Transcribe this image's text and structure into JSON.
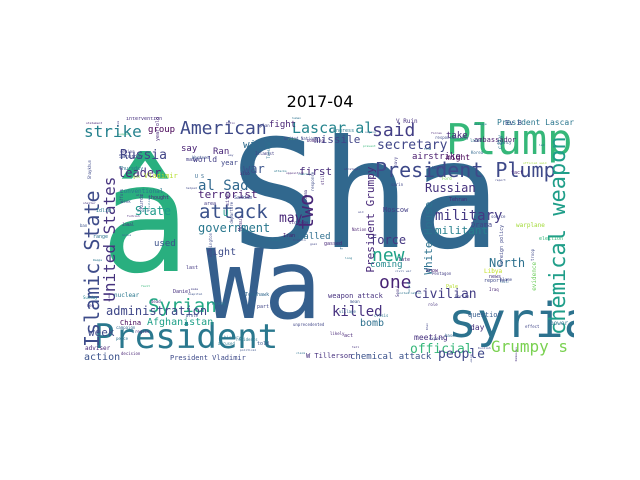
{
  "figure": {
    "title": "2017-04"
  },
  "word_cloud": {
    "words": [
      {
        "text": "Sha",
        "color": "#31688e"
      },
      {
        "text": "Wa",
        "color": "#355f8d"
      },
      {
        "text": "â",
        "color": "#29af7f"
      },
      {
        "text": "Plump",
        "color": "#35b779"
      },
      {
        "text": "syria",
        "color": "#2c728e"
      },
      {
        "text": "President",
        "color": "#2a788e"
      },
      {
        "text": "President Plump",
        "color": "#3e4989"
      },
      {
        "text": "attack",
        "color": "#3b528b"
      },
      {
        "text": "American",
        "color": "#3e4a89"
      },
      {
        "text": "Syrian",
        "color": "#22a884"
      },
      {
        "text": "chemical weapon",
        "color": "#1f9e89"
      },
      {
        "text": "Islamic State",
        "color": "#3e4c8a"
      },
      {
        "text": "United States",
        "color": "#46337e"
      },
      {
        "text": "strike",
        "color": "#26828e"
      },
      {
        "text": "said",
        "color": "#433e85"
      },
      {
        "text": "two",
        "color": "#482878"
      },
      {
        "text": "one",
        "color": "#482475"
      },
      {
        "text": "new",
        "color": "#1fa187"
      },
      {
        "text": "Grumpy s",
        "color": "#7ad151"
      },
      {
        "text": "Lascar al",
        "color": "#25858e"
      },
      {
        "text": "Russia",
        "color": "#414487"
      },
      {
        "text": "leader",
        "color": "#472d7b"
      },
      {
        "text": "killed",
        "color": "#46307e"
      },
      {
        "text": "al Sad",
        "color": "#31688e"
      },
      {
        "text": "military",
        "color": "#443983"
      },
      {
        "text": "Russian",
        "color": "#46327e"
      },
      {
        "text": "secretary",
        "color": "#404688"
      },
      {
        "text": "civilian",
        "color": "#433d84"
      },
      {
        "text": "administration",
        "color": "#3f4788"
      },
      {
        "text": "State",
        "color": "#1f9a8a"
      },
      {
        "text": "may",
        "color": "#482677"
      },
      {
        "text": "government",
        "color": "#2a788e"
      },
      {
        "text": "terrorist",
        "color": "#481f70"
      },
      {
        "text": "White House",
        "color": "#2c728e"
      },
      {
        "text": "President Grumpy",
        "color": "#482979"
      },
      {
        "text": "official",
        "color": "#35b779"
      },
      {
        "text": "people",
        "color": "#3f4889"
      },
      {
        "text": "force",
        "color": "#453781"
      },
      {
        "text": "North",
        "color": "#2d718e"
      },
      {
        "text": "militant",
        "color": "#27808e"
      },
      {
        "text": "week",
        "color": "#3e4a89"
      },
      {
        "text": "war",
        "color": "#3a548c"
      },
      {
        "text": "will",
        "color": "#2f6c8e"
      },
      {
        "text": "first",
        "color": "#472c7a"
      },
      {
        "text": "missile",
        "color": "#414487"
      },
      {
        "text": "group",
        "color": "#440154"
      },
      {
        "text": "say",
        "color": "#482173"
      },
      {
        "text": "used",
        "color": "#3b518b"
      },
      {
        "text": "right",
        "color": "#3e4c8a"
      },
      {
        "text": "Afghanistan",
        "color": "#1fa088"
      },
      {
        "text": "bomb",
        "color": "#2d708e"
      },
      {
        "text": "action",
        "color": "#3b528b"
      },
      {
        "text": "weapon attack",
        "color": "#46317e"
      },
      {
        "text": "chemical attack",
        "color": "#3b528b"
      },
      {
        "text": "coming",
        "color": "#23898e"
      },
      {
        "text": "called",
        "color": "#2e6e8e"
      },
      {
        "text": "Moscow",
        "color": "#433e85"
      },
      {
        "text": "airstrike",
        "color": "#481a6c"
      },
      {
        "text": "fight",
        "color": "#482374"
      },
      {
        "text": "take",
        "color": "#482878"
      },
      {
        "text": "might",
        "color": "#440154"
      },
      {
        "text": "day",
        "color": "#46337e"
      },
      {
        "text": "meeting",
        "color": "#46307e"
      },
      {
        "text": "Drama",
        "color": "#414487"
      },
      {
        "text": "question",
        "color": "#365c8d"
      },
      {
        "text": "President Lascar",
        "color": "#2a768e"
      },
      {
        "text": "President Vladimir",
        "color": "#3e4a89"
      },
      {
        "text": "W Tillerson",
        "color": "#46307e"
      },
      {
        "text": "ambassador",
        "color": "#481b6d"
      },
      {
        "text": "Ran",
        "color": "#482677"
      },
      {
        "text": "world",
        "color": "#433e85"
      },
      {
        "text": "China",
        "color": "#440154"
      },
      {
        "text": "year",
        "color": "#3f4788"
      },
      {
        "text": "power",
        "color": "#2c728e"
      },
      {
        "text": "U",
        "color": "#1f9e89"
      },
      {
        "text": "Ev B",
        "color": "#3b528b"
      },
      {
        "text": "V Ruin",
        "color": "#46307e"
      },
      {
        "text": "conventional",
        "color": "#2a788e"
      },
      {
        "text": "Vladimir",
        "color": "#b5de2b"
      },
      {
        "text": "evidence",
        "color": "#6ccd5a"
      },
      {
        "text": "nuclear",
        "color": "#2a788e"
      },
      {
        "text": "intervention",
        "color": "#46307e"
      },
      {
        "text": "warplane",
        "color": "#a2da37"
      },
      {
        "text": "reporter",
        "color": "#3e4989"
      },
      {
        "text": "Libya",
        "color": "#c2df23"
      },
      {
        "text": "foreign policy",
        "color": "#3f4788"
      },
      {
        "text": "election",
        "color": "#35b779"
      },
      {
        "text": "adviser",
        "color": "#482677"
      },
      {
        "text": "city",
        "color": "#2c728e"
      },
      {
        "text": "thought",
        "color": "#482878"
      },
      {
        "text": "gas",
        "color": "#8fd744"
      },
      {
        "text": "campaign",
        "color": "#31688e"
      },
      {
        "text": "Turkey",
        "color": "#2a788e"
      },
      {
        "text": "response",
        "color": "#3e4c8a"
      },
      {
        "text": "region",
        "color": "#31688e"
      },
      {
        "text": "Damascus",
        "color": "#46307e"
      },
      {
        "text": "official said",
        "color": "#a0da39"
      },
      {
        "text": "sarin",
        "color": "#404688"
      },
      {
        "text": "opposition",
        "color": "#482475"
      },
      {
        "text": "dead",
        "color": "#46327e"
      },
      {
        "text": "peace",
        "color": "#2c728e"
      },
      {
        "text": "country",
        "color": "#26828e"
      },
      {
        "text": "Pentagon",
        "color": "#433e85"
      },
      {
        "text": "rebel",
        "color": "#5ec962"
      },
      {
        "text": "civil war",
        "color": "#3b528b"
      },
      {
        "text": "Iran",
        "color": "#481a6c"
      },
      {
        "text": "strategy",
        "color": "#482979"
      },
      {
        "text": "time",
        "color": "#2a788e"
      },
      {
        "text": "Kurdish",
        "color": "#404688"
      },
      {
        "text": "know",
        "color": "#482173"
      },
      {
        "text": "departure",
        "color": "#3e4989"
      },
      {
        "text": "united nation",
        "color": "#2c728e"
      },
      {
        "text": "shelter",
        "color": "#46337e"
      },
      {
        "text": "decision",
        "color": "#482374"
      },
      {
        "text": "Nation",
        "color": "#481f70"
      },
      {
        "text": "report",
        "color": "#404688"
      },
      {
        "text": "target",
        "color": "#2c728e"
      },
      {
        "text": "wrote",
        "color": "#3b528b"
      },
      {
        "text": "Kim",
        "color": "#433e85"
      },
      {
        "text": "Korea",
        "color": "#31688e"
      },
      {
        "text": "Washington",
        "color": "#3e4c8a"
      },
      {
        "text": "helped",
        "color": "#3f4788"
      },
      {
        "text": "year old",
        "color": "#482878"
      },
      {
        "text": "Tuesday",
        "color": "#2c728e"
      },
      {
        "text": "Sunday",
        "color": "#26828e"
      },
      {
        "text": "residents",
        "color": "#2a788e"
      },
      {
        "text": "area",
        "color": "#443983"
      },
      {
        "text": "support",
        "color": "#35b779"
      },
      {
        "text": "Raqqa",
        "color": "#2a788e"
      },
      {
        "text": "likely",
        "color": "#482677"
      },
      {
        "text": "regime",
        "color": "#46307e"
      },
      {
        "text": "blame",
        "color": "#3e4a89"
      },
      {
        "text": "source",
        "color": "#404688"
      },
      {
        "text": "base",
        "color": "#31688e"
      },
      {
        "text": "crisis",
        "color": "#2a788e"
      },
      {
        "text": "troop",
        "color": "#3e4989"
      },
      {
        "text": "role",
        "color": "#46337e"
      },
      {
        "text": "Iraq",
        "color": "#482475"
      },
      {
        "text": "claim",
        "color": "#2c728e"
      },
      {
        "text": "navy",
        "color": "#433e85"
      },
      {
        "text": "Putin",
        "color": "#46307e"
      },
      {
        "text": "Idlib",
        "color": "#2a788e"
      },
      {
        "text": "hospital",
        "color": "#3b528b"
      },
      {
        "text": "aid",
        "color": "#404688"
      },
      {
        "text": "Mosul",
        "color": "#482878"
      },
      {
        "text": "Saturday",
        "color": "#3e4a89"
      },
      {
        "text": "Friday",
        "color": "#2c728e"
      },
      {
        "text": "video",
        "color": "#46337e"
      },
      {
        "text": "agency",
        "color": "#31688e"
      },
      {
        "text": "plan",
        "color": "#404688"
      },
      {
        "text": "message",
        "color": "#2a788e"
      },
      {
        "text": "also",
        "color": "#482475"
      },
      {
        "text": "last",
        "color": "#443983"
      },
      {
        "text": "told",
        "color": "#3b528b"
      },
      {
        "text": "Thursday",
        "color": "#2c728e"
      },
      {
        "text": "tell",
        "color": "#46307e"
      },
      {
        "text": "way",
        "color": "#404688"
      },
      {
        "text": "Pale",
        "color": "#b5de2b"
      },
      {
        "text": "fault",
        "color": "#35b779"
      },
      {
        "text": "Saddam",
        "color": "#3e4c8a"
      },
      {
        "text": "cease",
        "color": "#2c728e"
      },
      {
        "text": "gassed",
        "color": "#482878"
      },
      {
        "text": "senior",
        "color": "#433e85"
      },
      {
        "text": "expert",
        "color": "#404688"
      },
      {
        "text": "United Nations",
        "color": "#3e4a89"
      },
      {
        "text": "U S",
        "color": "#31688e"
      },
      {
        "text": "political",
        "color": "#3b528b"
      },
      {
        "text": "Congress",
        "color": "#2a788e"
      },
      {
        "text": "Obama",
        "color": "#46307e"
      },
      {
        "text": "strategic",
        "color": "#443983"
      },
      {
        "text": "bombing",
        "color": "#482475"
      },
      {
        "text": "human",
        "color": "#2c728e"
      },
      {
        "text": "effort",
        "color": "#3e4989"
      },
      {
        "text": "effect",
        "color": "#404688"
      },
      {
        "text": "Lascar",
        "color": "#3e4a89"
      },
      {
        "text": "act",
        "color": "#482677"
      },
      {
        "text": "saying",
        "color": "#31688e"
      },
      {
        "text": "accused",
        "color": "#2a788e"
      },
      {
        "text": "Seoul",
        "color": "#46337e"
      },
      {
        "text": "ally",
        "color": "#433e85"
      },
      {
        "text": "goal",
        "color": "#404688"
      },
      {
        "text": "seek",
        "color": "#3b528b"
      },
      {
        "text": "civilians",
        "color": "#2c728e"
      },
      {
        "text": "Turkish",
        "color": "#482878"
      },
      {
        "text": "Kremlin",
        "color": "#3e4c8a"
      },
      {
        "text": "Tomahawk",
        "color": "#31688e"
      },
      {
        "text": "Ford",
        "color": "#7ad151"
      },
      {
        "text": "unprecedented",
        "color": "#404688"
      },
      {
        "text": "attacks",
        "color": "#2a788e"
      },
      {
        "text": "Daniel",
        "color": "#46307e"
      },
      {
        "text": "forces",
        "color": "#482475"
      },
      {
        "text": "ban",
        "color": "#3b528b"
      },
      {
        "text": "range",
        "color": "#2c728e"
      },
      {
        "text": "men",
        "color": "#433e85"
      },
      {
        "text": "responsibility",
        "color": "#3e4a89"
      },
      {
        "text": "fact",
        "color": "#482677"
      },
      {
        "text": "toxic",
        "color": "#31688e"
      },
      {
        "text": "part",
        "color": "#404688"
      },
      {
        "text": "long",
        "color": "#2a788e"
      },
      {
        "text": "Jamal",
        "color": "#46307e"
      },
      {
        "text": "still",
        "color": "#482878"
      },
      {
        "text": "US",
        "color": "#3b528b"
      },
      {
        "text": "make",
        "color": "#433e85"
      },
      {
        "text": "later",
        "color": "#2c728e"
      },
      {
        "text": "Khan",
        "color": "#404688"
      },
      {
        "text": "Shaykhun",
        "color": "#3e4989"
      },
      {
        "text": "statement",
        "color": "#482475"
      },
      {
        "text": "prevent",
        "color": "#35b779"
      },
      {
        "text": "Gorka",
        "color": "#31688e"
      },
      {
        "text": "Mr",
        "color": "#2a788e"
      },
      {
        "text": "news",
        "color": "#46337e"
      },
      {
        "text": "Kurds",
        "color": "#404688"
      },
      {
        "text": "mean",
        "color": "#3b528b"
      },
      {
        "text": "mass",
        "color": "#433e85"
      },
      {
        "text": "Tehran",
        "color": "#482677"
      },
      {
        "text": "history",
        "color": "#2c728e"
      },
      {
        "text": "sites",
        "color": "#46307e"
      },
      {
        "text": "want",
        "color": "#3e4a89"
      },
      {
        "text": "village",
        "color": "#31688e"
      },
      {
        "text": "Berlin",
        "color": "#404688"
      },
      {
        "text": "late",
        "color": "#482878"
      },
      {
        "text": "led",
        "color": "#2a788e"
      },
      {
        "text": "Islamist",
        "color": "#433e85"
      },
      {
        "text": "Western",
        "color": "#3b528b"
      }
    ]
  }
}
